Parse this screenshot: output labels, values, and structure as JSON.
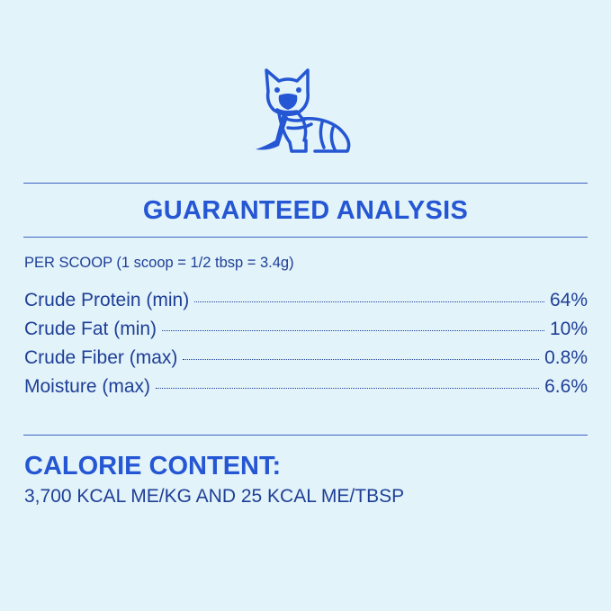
{
  "logo": {
    "icon": "french-bulldog-with-leash-icon",
    "color": "#2556d3"
  },
  "heading": "GUARANTEED ANALYSIS",
  "per_scoop": "PER SCOOP (1 scoop = 1/2 tbsp = 3.4g)",
  "analysis": [
    {
      "label": "Crude Protein (min)",
      "value": "64%"
    },
    {
      "label": "Crude Fat (min)",
      "value": "10%"
    },
    {
      "label": "Crude Fiber (max)",
      "value": "0.8%"
    },
    {
      "label": "Moisture (max)",
      "value": "6.6%"
    }
  ],
  "calorie": {
    "title": "CALORIE CONTENT:",
    "text": "3,700 KCAL ME/KG AND 25 KCAL ME/TBSP"
  },
  "colors": {
    "background": "#e2f3fa",
    "accent": "#2556d3",
    "text": "#1f3f96"
  }
}
